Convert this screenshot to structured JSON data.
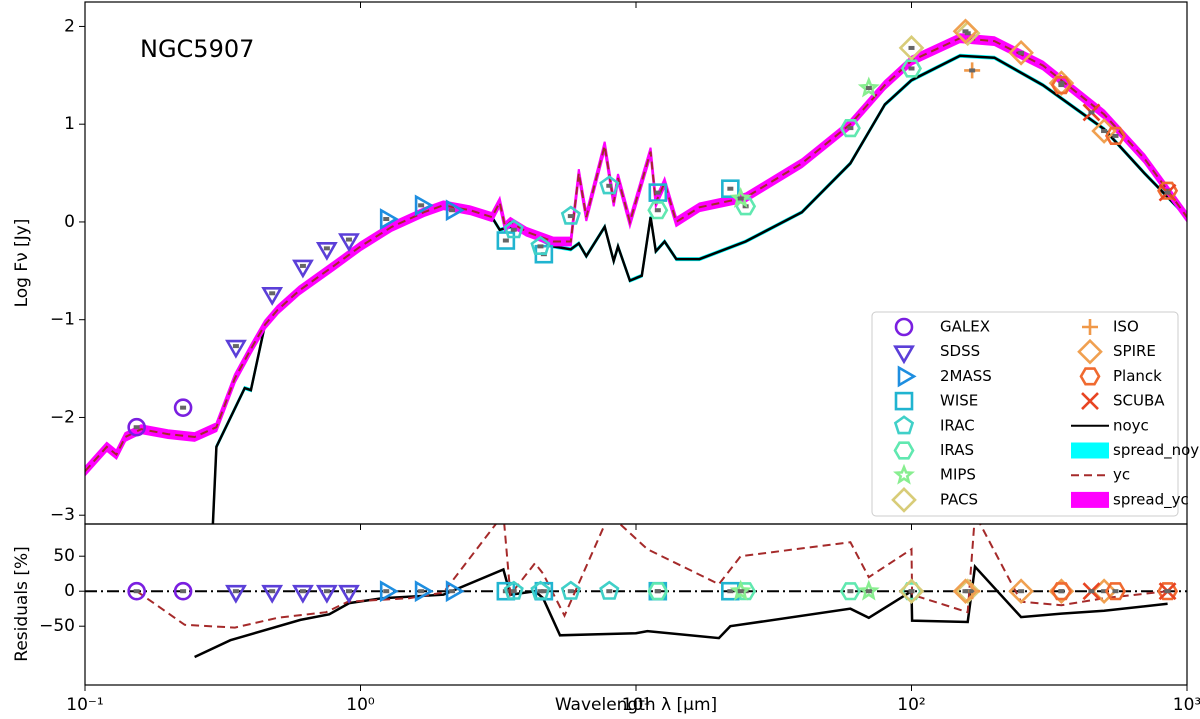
{
  "chart_data": [
    {
      "type": "sed",
      "annotation": "NGC5907",
      "ylabel": "Log Fν [Jy]",
      "xscale": "log",
      "xlim": [
        0.1,
        1000
      ],
      "xticks": [
        {
          "value": 0.1,
          "label": "10⁻¹"
        },
        {
          "value": 1,
          "label": "10⁰"
        },
        {
          "value": 10,
          "label": "10¹"
        },
        {
          "value": 100,
          "label": "10²"
        },
        {
          "value": 1000,
          "label": "10³"
        }
      ],
      "ylim": [
        -3.09,
        2.25
      ],
      "yticks": [
        {
          "value": -3,
          "label": "−3"
        },
        {
          "value": -2,
          "label": "−2"
        },
        {
          "value": -1,
          "label": "−1"
        },
        0,
        1,
        2
      ],
      "legend": "lower right",
      "series": [
        {
          "name": "GALEX",
          "color": "#7a1fe0",
          "marker": "circle",
          "x": [
            0.154,
            0.227
          ],
          "values": [
            -2.1,
            -1.9
          ]
        },
        {
          "name": "SDSS",
          "color": "#5b3fd8",
          "marker": "tri_down",
          "x": [
            0.353,
            0.478,
            0.618,
            0.755,
            0.908
          ],
          "values": [
            -1.27,
            -0.73,
            -0.45,
            -0.27,
            -0.18
          ]
        },
        {
          "name": "2MASS",
          "color": "#1e8ee0",
          "marker": "tri_right",
          "x": [
            1.24,
            1.66,
            2.15
          ],
          "values": [
            0.03,
            0.17,
            0.12
          ]
        },
        {
          "name": "WISE",
          "color": "#20b4d0",
          "marker": "square",
          "x": [
            3.37,
            4.63,
            12,
            22
          ],
          "values": [
            -0.19,
            -0.33,
            0.3,
            0.34
          ]
        },
        {
          "name": "IRAC",
          "color": "#40d0c8",
          "marker": "pentagon",
          "x": [
            3.6,
            4.5,
            5.8,
            8.0
          ],
          "values": [
            -0.08,
            -0.25,
            0.06,
            0.37
          ]
        },
        {
          "name": "IRAS",
          "color": "#60e8b0",
          "marker": "hexagon",
          "x": [
            12,
            25,
            60,
            100
          ],
          "values": [
            0.12,
            0.16,
            0.96,
            1.57
          ]
        },
        {
          "name": "MIPS",
          "color": "#88ee90",
          "marker": "star",
          "x": [
            24,
            70
          ],
          "values": [
            0.24,
            1.37
          ]
        },
        {
          "name": "PACS",
          "color": "#d8cc78",
          "marker": "diamond",
          "x": [
            100,
            160
          ],
          "values": [
            1.78,
            1.93
          ]
        },
        {
          "name": "ISO",
          "color": "#f09848",
          "marker": "plus",
          "x": [
            166
          ],
          "values": [
            1.55
          ]
        },
        {
          "name": "SPIRE",
          "color": "#f0a050",
          "marker": "diamond",
          "x": [
            157,
            250,
            350,
            500
          ],
          "values": [
            1.95,
            1.73,
            1.42,
            0.93
          ]
        },
        {
          "name": "Planck",
          "color": "#f06a30",
          "marker": "hexagon",
          "x": [
            350,
            550,
            850
          ],
          "values": [
            1.4,
            0.88,
            0.32
          ]
        },
        {
          "name": "SCUBA",
          "color": "#e84422",
          "marker": "x",
          "x": [
            450,
            850
          ],
          "values": [
            1.12,
            0.3
          ]
        }
      ],
      "models": [
        {
          "name": "noyc",
          "color": "#000000",
          "style": "solid",
          "x": [
            0.29,
            0.3,
            0.38,
            0.4,
            0.45,
            0.5,
            0.6,
            0.8,
            1.0,
            1.3,
            1.7,
            2.0,
            2.5,
            3.0,
            3.2,
            3.5,
            4.0,
            5.0,
            5.8,
            6.2,
            6.6,
            7.7,
            8.3,
            8.6,
            9.5,
            10.5,
            11.3,
            11.8,
            12.7,
            14,
            17,
            25,
            40,
            60,
            80,
            100,
            150,
            200,
            300,
            500,
            700,
            1000
          ],
          "values": [
            -3.2,
            -2.3,
            -1.7,
            -1.72,
            -1.05,
            -0.9,
            -0.7,
            -0.45,
            -0.25,
            -0.05,
            0.1,
            0.17,
            0.12,
            0.05,
            -0.08,
            -0.05,
            -0.1,
            -0.25,
            -0.28,
            -0.22,
            -0.35,
            -0.05,
            -0.4,
            -0.25,
            -0.6,
            -0.55,
            0.05,
            -0.3,
            -0.2,
            -0.38,
            -0.38,
            -0.2,
            0.1,
            0.6,
            1.2,
            1.45,
            1.7,
            1.68,
            1.4,
            0.95,
            0.5,
            0.05
          ]
        },
        {
          "name": "spread_noyc",
          "color": "#00ffff",
          "style": "band",
          "width": 0.01
        },
        {
          "name": "yc",
          "color": "#a52a2a",
          "style": "dashed",
          "x": [
            0.1,
            0.12,
            0.13,
            0.14,
            0.16,
            0.2,
            0.25,
            0.3,
            0.35,
            0.4,
            0.45,
            0.5,
            0.6,
            0.8,
            1.0,
            1.3,
            1.7,
            2.0,
            2.5,
            3.0,
            3.2,
            3.35,
            3.5,
            4.0,
            5.0,
            5.8,
            6.2,
            6.6,
            7.7,
            8.3,
            8.6,
            9.5,
            11.3,
            11.8,
            12.7,
            14,
            17,
            25,
            40,
            60,
            80,
            100,
            150,
            200,
            300,
            500,
            700,
            1000
          ],
          "values": [
            -2.55,
            -2.3,
            -2.38,
            -2.2,
            -2.12,
            -2.17,
            -2.2,
            -2.1,
            -1.6,
            -1.3,
            -1.05,
            -0.9,
            -0.7,
            -0.45,
            -0.25,
            -0.05,
            0.1,
            0.17,
            0.12,
            0.05,
            0.2,
            -0.05,
            0.0,
            -0.1,
            -0.2,
            -0.2,
            0.5,
            0.05,
            0.78,
            0.2,
            0.45,
            0.0,
            0.72,
            0.2,
            0.4,
            0.0,
            0.15,
            0.25,
            0.6,
            1.0,
            1.4,
            1.65,
            1.88,
            1.85,
            1.6,
            1.1,
            0.65,
            0.05
          ]
        },
        {
          "name": "spread_yc",
          "color": "#ff00ff",
          "style": "band",
          "width": 0.04
        }
      ]
    },
    {
      "type": "residuals",
      "xlabel": "Wavelength λ [µm]",
      "ylabel": "Residuals [%]",
      "xscale": "log",
      "xlim": [
        0.1,
        1000
      ],
      "ylim": [
        -134,
        96
      ],
      "yticks": [
        {
          "value": -50,
          "label": "−50"
        },
        0,
        50
      ],
      "series": [
        {
          "name": "GALEX",
          "color": "#7a1fe0",
          "marker": "circle",
          "x": [
            0.154,
            0.227
          ],
          "values": [
            0,
            0
          ]
        },
        {
          "name": "SDSS",
          "color": "#5b3fd8",
          "marker": "tri_down",
          "x": [
            0.353,
            0.478,
            0.618,
            0.755,
            0.908
          ],
          "values": [
            0,
            0,
            0,
            0,
            0
          ]
        },
        {
          "name": "2MASS",
          "color": "#1e8ee0",
          "marker": "tri_right",
          "x": [
            1.24,
            1.66,
            2.15
          ],
          "values": [
            0,
            0,
            0
          ]
        },
        {
          "name": "WISE",
          "color": "#20b4d0",
          "marker": "square",
          "x": [
            3.37,
            4.63,
            12,
            22
          ],
          "values": [
            0,
            0,
            0,
            0
          ]
        },
        {
          "name": "IRAC",
          "color": "#40d0c8",
          "marker": "pentagon",
          "x": [
            3.6,
            4.5,
            5.8,
            8.0
          ],
          "values": [
            0,
            0,
            0,
            0
          ]
        },
        {
          "name": "IRAS",
          "color": "#60e8b0",
          "marker": "hexagon",
          "x": [
            12,
            25,
            60,
            100
          ],
          "values": [
            0,
            0,
            0,
            0
          ]
        },
        {
          "name": "MIPS",
          "color": "#88ee90",
          "marker": "star",
          "x": [
            24,
            70
          ],
          "values": [
            0,
            0
          ]
        },
        {
          "name": "PACS",
          "color": "#d8cc78",
          "marker": "diamond",
          "x": [
            100,
            160
          ],
          "values": [
            0,
            0
          ]
        },
        {
          "name": "ISO",
          "color": "#f09848",
          "marker": "plus",
          "x": [
            166
          ],
          "values": [
            0
          ]
        },
        {
          "name": "SPIRE",
          "color": "#f0a050",
          "marker": "diamond",
          "x": [
            157,
            250,
            350,
            500
          ],
          "values": [
            0,
            0,
            0,
            0
          ]
        },
        {
          "name": "Planck",
          "color": "#f06a30",
          "marker": "hexagon",
          "x": [
            350,
            550,
            850
          ],
          "values": [
            0,
            0,
            0
          ]
        },
        {
          "name": "SCUBA",
          "color": "#e84422",
          "marker": "x",
          "x": [
            450,
            850
          ],
          "values": [
            0,
            0
          ]
        }
      ],
      "models": [
        {
          "name": "noyc",
          "color": "#000000",
          "style": "solid",
          "x": [
            0.25,
            0.337,
            0.605,
            0.77,
            0.91,
            1.2,
            2.0,
            3.3,
            3.5,
            4.3,
            4.6,
            5.3,
            10,
            11,
            20,
            22,
            60,
            70,
            100,
            100.5,
            160,
            170,
            250,
            350,
            500,
            850
          ],
          "values": [
            -94,
            -70,
            -41,
            -33,
            -17,
            -10,
            -5,
            31,
            -5,
            0,
            -10,
            -63,
            -60,
            -57,
            -67,
            -50,
            -25,
            -38,
            0,
            -42,
            -44,
            35,
            -37,
            -32,
            -28,
            -18
          ]
        },
        {
          "name": "yc",
          "color": "#a52a2a",
          "style": "dashed",
          "x": [
            0.154,
            0.23,
            0.35,
            0.5,
            0.75,
            0.9,
            1.5,
            2.0,
            3.3,
            3.5,
            4.3,
            4.6,
            5.5,
            8.0,
            11,
            20,
            24,
            60,
            70,
            100,
            100.5,
            160,
            170,
            250,
            350,
            500,
            850
          ],
          "values": [
            0,
            -48,
            -52,
            -38,
            -30,
            -15,
            -10,
            -2,
            110,
            -5,
            40,
            25,
            -35,
            110,
            60,
            10,
            50,
            70,
            20,
            60,
            -5,
            -30,
            110,
            -15,
            -20,
            -10,
            0
          ]
        }
      ]
    }
  ]
}
